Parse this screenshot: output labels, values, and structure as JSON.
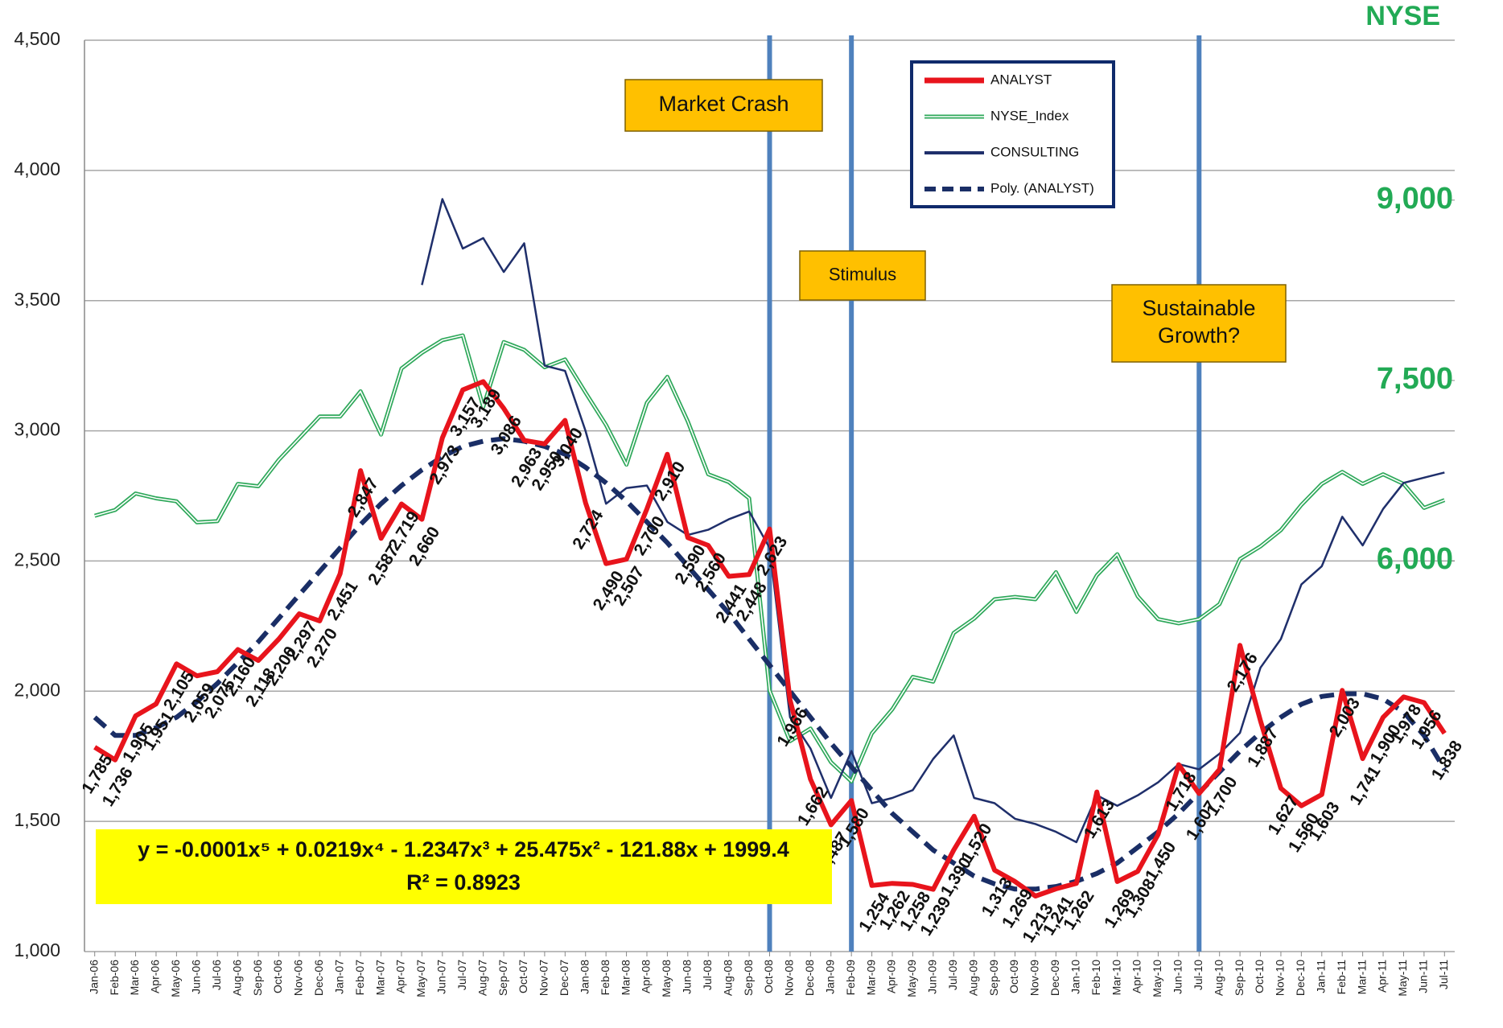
{
  "chart_data": {
    "type": "line",
    "categories": [
      "Jan-06",
      "Feb-06",
      "Mar-06",
      "Apr-06",
      "May-06",
      "Jun-06",
      "Jul-06",
      "Aug-06",
      "Sep-06",
      "Oct-06",
      "Nov-06",
      "Dec-06",
      "Jan-07",
      "Feb-07",
      "Mar-07",
      "Apr-07",
      "May-07",
      "Jun-07",
      "Jul-07",
      "Aug-07",
      "Sep-07",
      "Oct-07",
      "Nov-07",
      "Dec-07",
      "Jan-08",
      "Feb-08",
      "Mar-08",
      "Apr-08",
      "May-08",
      "Jun-08",
      "Jul-08",
      "Aug-08",
      "Sep-08",
      "Oct-08",
      "Nov-08",
      "Dec-08",
      "Jan-09",
      "Feb-09",
      "Mar-09",
      "Apr-09",
      "May-09",
      "Jun-09",
      "Jul-09",
      "Aug-09",
      "Sep-09",
      "Oct-09",
      "Nov-09",
      "Dec-09",
      "Jan-10",
      "Feb-10",
      "Mar-10",
      "Apr-10",
      "May-10",
      "Jun-10",
      "Jul-10",
      "Aug-10",
      "Sep-10",
      "Oct-10",
      "Nov-10",
      "Dec-10",
      "Jan-11",
      "Feb-11",
      "Mar-11",
      "Apr-11",
      "May-11",
      "Jun-11",
      "Jul-11"
    ],
    "series": [
      {
        "name": "ANALYST",
        "color": "#e8141c",
        "values": [
          1785,
          1736,
          1905,
          1951,
          2105,
          2059,
          2075,
          2160,
          2118,
          2200,
          2297,
          2270,
          2451,
          2847,
          2587,
          2719,
          2660,
          2973,
          3157,
          3189,
          3086,
          2963,
          2950,
          3040,
          2724,
          2490,
          2507,
          2700,
          2910,
          2590,
          2560,
          2441,
          2448,
          2623,
          1966,
          1662,
          1487,
          1580,
          1254,
          1262,
          1258,
          1239,
          1390,
          1520,
          1313,
          1269,
          1213,
          1241,
          1262,
          1613,
          1269,
          1308,
          1450,
          1718,
          1607,
          1700,
          2176,
          1887,
          1627,
          1560,
          1603,
          2003,
          1741,
          1900,
          1978,
          1956,
          1838
        ],
        "value_labels": [
          "1,785",
          "1,736",
          "1,905",
          "1,951",
          "2,105",
          "2,059",
          "2,075",
          "2,160",
          "2,118",
          "2,200",
          "2,297",
          "2,270",
          "2,451",
          "2,847",
          "2,587",
          "2,719",
          "2,660",
          "2,973",
          "3,157",
          "3,189",
          "3,086",
          "2,963",
          "2,950",
          "3,040",
          "2,724",
          "2,490",
          "2,507",
          "2,700",
          "2,910",
          "2,590",
          "2,560",
          "2,441",
          "2,448",
          "2,623",
          "1,966",
          "1,662",
          "1,487",
          "1,580",
          "1,254",
          "1,262",
          "1,258",
          "1,239",
          "1,390",
          "1,520",
          "1,313",
          "1,269",
          "1,213",
          "1,241",
          "1,262",
          "1,613",
          "1,269",
          "1,308",
          "1,450",
          "1,718",
          "1,607",
          "1,700",
          "2,176",
          "1,887",
          "1,627",
          "1,560",
          "1,603",
          "2,003",
          "1,741",
          "1,900",
          "1,978",
          "1,956",
          "1,838"
        ]
      },
      {
        "name": "NYSE_Index",
        "color": "#2ea85a",
        "axis": "y2",
        "values": [
          6375,
          6423,
          6560,
          6520,
          6495,
          6320,
          6330,
          6640,
          6620,
          6840,
          7020,
          7200,
          7200,
          7410,
          7050,
          7600,
          7730,
          7835,
          7875,
          7280,
          7820,
          7755,
          7610,
          7675,
          7400,
          7130,
          6800,
          7315,
          7530,
          7160,
          6720,
          6655,
          6520,
          4920,
          4500,
          4605,
          4325,
          4165,
          4565,
          4765,
          5035,
          4995,
          5400,
          5520,
          5680,
          5700,
          5680,
          5905,
          5575,
          5880,
          6055,
          5705,
          5515,
          5480,
          5515,
          5640,
          6015,
          6120,
          6255,
          6465,
          6640,
          6740,
          6640,
          6720,
          6640,
          6440,
          6505
        ]
      },
      {
        "name": "CONSULTING",
        "color": "#1f2f6b",
        "values": [
          null,
          null,
          null,
          null,
          null,
          null,
          null,
          null,
          null,
          null,
          null,
          null,
          null,
          null,
          null,
          null,
          3560,
          3890,
          3700,
          3740,
          3610,
          3720,
          3250,
          3230,
          3000,
          2720,
          2780,
          2790,
          2650,
          2600,
          2620,
          2660,
          2690,
          2550,
          1900,
          1780,
          1590,
          1770,
          1570,
          1590,
          1620,
          1740,
          1830,
          1590,
          1570,
          1510,
          1490,
          1460,
          1420,
          1600,
          1560,
          1600,
          1650,
          1720,
          1700,
          1760,
          1840,
          2090,
          2200,
          2410,
          2480,
          2670,
          2560,
          2700,
          2800,
          2820,
          2840
        ]
      },
      {
        "name": "Poly. (ANALYST)",
        "color": "#1a2e66",
        "dashed": true,
        "values": [
          1900,
          1830,
          1830,
          1860,
          1900,
          1960,
          2030,
          2110,
          2190,
          2280,
          2370,
          2460,
          2550,
          2640,
          2720,
          2790,
          2850,
          2900,
          2940,
          2960,
          2970,
          2960,
          2940,
          2910,
          2860,
          2800,
          2730,
          2650,
          2570,
          2480,
          2390,
          2300,
          2200,
          2100,
          2000,
          1900,
          1800,
          1710,
          1620,
          1530,
          1460,
          1390,
          1340,
          1290,
          1260,
          1240,
          1240,
          1250,
          1270,
          1300,
          1340,
          1400,
          1460,
          1530,
          1610,
          1690,
          1770,
          1840,
          1900,
          1950,
          1980,
          1990,
          1990,
          1970,
          1920,
          1830,
          1700
        ]
      }
    ],
    "ylim": [
      1000,
      4500
    ],
    "yticks": [
      {
        "value": 1000,
        "label": "1,000"
      },
      {
        "value": 1500,
        "label": "1,500"
      },
      {
        "value": 2000,
        "label": "2,000"
      },
      {
        "value": 2500,
        "label": "2,500"
      },
      {
        "value": 3000,
        "label": "3,000"
      },
      {
        "value": 3500,
        "label": "3,500"
      },
      {
        "value": 4000,
        "label": "4,000"
      },
      {
        "value": 4500,
        "label": "4,500"
      }
    ],
    "y2title": "NYSE",
    "y2lim": [
      2750,
      10330
    ],
    "y2ticks": [
      {
        "value": 6000,
        "label": "6,000"
      },
      {
        "value": 7500,
        "label": "7,500"
      },
      {
        "value": 9000,
        "label": "9,000"
      }
    ],
    "grid": true,
    "annotations": [
      {
        "lines": [
          "Market Crash"
        ]
      },
      {
        "lines": [
          "Stimulus"
        ]
      },
      {
        "lines": [
          "Sustainable",
          "Growth?"
        ]
      }
    ],
    "equation": [
      "y = -0.0001x⁵ + 0.0219x⁴ - 1.2347x³ + 25.475x² - 121.88x + 1999.4",
      "R² = 0.8923"
    ]
  }
}
